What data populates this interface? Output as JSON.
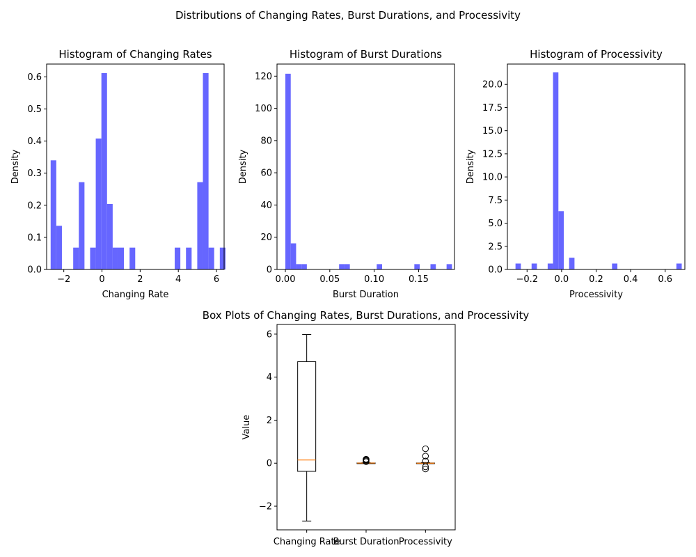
{
  "figure": {
    "suptitle": "Distributions of Changing Rates, Burst Durations, and Processivity",
    "colors": {
      "bar": "#6666ff",
      "median": "#ff7f0e",
      "axes": "#000000"
    }
  },
  "chart_data": [
    {
      "type": "bar",
      "title": "Histogram of Changing Rates",
      "xlabel": "Changing Rate",
      "ylabel": "Density",
      "xlim": [
        -2.9,
        6.4
      ],
      "ylim": [
        0,
        0.64
      ],
      "xticks": [
        -2,
        0,
        2,
        4,
        6
      ],
      "xtick_labels": [
        "−2",
        "0",
        "2",
        "4",
        "6"
      ],
      "yticks": [
        0.0,
        0.1,
        0.2,
        0.3,
        0.4,
        0.5,
        0.6
      ],
      "ytick_labels": [
        "0.0",
        "0.1",
        "0.2",
        "0.3",
        "0.4",
        "0.5",
        "0.6"
      ],
      "bin_start": -2.69,
      "bin_width": 0.2955,
      "densities": [
        0.34,
        0.136,
        0,
        0,
        0.068,
        0.272,
        0,
        0.068,
        0.408,
        0.612,
        0.204,
        0.068,
        0.068,
        0,
        0.068,
        0,
        0,
        0,
        0,
        0,
        0,
        0,
        0.068,
        0,
        0.068,
        0,
        0.272,
        0.612,
        0.068,
        0,
        0.068
      ]
    },
    {
      "type": "bar",
      "title": "Histogram of Burst Durations",
      "xlabel": "Burst Duration",
      "ylabel": "Density",
      "xlim": [
        -0.0094,
        0.1904
      ],
      "ylim": [
        0,
        127.5
      ],
      "xticks": [
        0.0,
        0.05,
        0.1,
        0.15
      ],
      "xtick_labels": [
        "0.00",
        "0.05",
        "0.10",
        "0.15"
      ],
      "yticks": [
        0,
        20,
        40,
        60,
        80,
        100,
        120
      ],
      "ytick_labels": [
        "0",
        "20",
        "40",
        "60",
        "80",
        "100",
        "120"
      ],
      "bin_start": 0.0,
      "bin_width": 0.00605,
      "densities": [
        121.5,
        16.2,
        3.3,
        3.3,
        0,
        0,
        0,
        0,
        0,
        0,
        3.3,
        3.3,
        0,
        0,
        0,
        0,
        0,
        3.3,
        0,
        0,
        0,
        0,
        0,
        0,
        3.3,
        0,
        0,
        3.3,
        0,
        0,
        3.3
      ]
    },
    {
      "type": "bar",
      "title": "Histogram of Processivity",
      "xlabel": "Processivity",
      "ylabel": "Density",
      "xlim": [
        -0.314,
        0.714
      ],
      "ylim": [
        0,
        22.2
      ],
      "xticks": [
        -0.2,
        0.0,
        0.2,
        0.4,
        0.6
      ],
      "xtick_labels": [
        "−0.2",
        "0.0",
        "0.2",
        "0.4",
        "0.6"
      ],
      "yticks": [
        0,
        2.5,
        5,
        7.5,
        10,
        12.5,
        15,
        17.5,
        20
      ],
      "ytick_labels": [
        "0.0",
        "2.5",
        "5.0",
        "7.5",
        "10.0",
        "12.5",
        "15.0",
        "17.5",
        "20.0"
      ],
      "bin_start": -0.267,
      "bin_width": 0.03106,
      "densities": [
        0.64,
        0,
        0,
        0.64,
        0,
        0,
        0.64,
        21.3,
        6.3,
        0,
        1.27,
        0,
        0,
        0,
        0,
        0,
        0,
        0,
        0.64,
        0,
        0,
        0,
        0,
        0,
        0,
        0,
        0,
        0,
        0,
        0,
        0.64
      ]
    },
    {
      "type": "box",
      "title": "Box Plots of Changing Rates, Burst Durations, and Processivity",
      "xlabel": "",
      "ylabel": "Value",
      "ylim": [
        -3.1,
        6.45
      ],
      "yticks": [
        -2,
        0,
        2,
        4,
        6
      ],
      "ytick_labels": [
        "−2",
        "0",
        "2",
        "4",
        "6"
      ],
      "categories": [
        "Changing Rate",
        "Burst Duration",
        "Processivity"
      ],
      "boxes": [
        {
          "whisker_low": -2.69,
          "q1": -0.38,
          "median": 0.15,
          "q3": 4.72,
          "whisker_high": 5.98,
          "fliers": []
        },
        {
          "whisker_low": 0.0,
          "q1": 0.003,
          "median": 0.006,
          "q3": 0.012,
          "whisker_high": 0.02,
          "fliers": [
            0.07,
            0.11,
            0.145,
            0.165,
            0.185
          ]
        },
        {
          "whisker_low": -0.02,
          "q1": -0.01,
          "median": 0.0,
          "q3": 0.01,
          "whisker_high": 0.03,
          "fliers": [
            0.67,
            0.33,
            0.1,
            -0.17,
            -0.27
          ]
        }
      ]
    }
  ]
}
